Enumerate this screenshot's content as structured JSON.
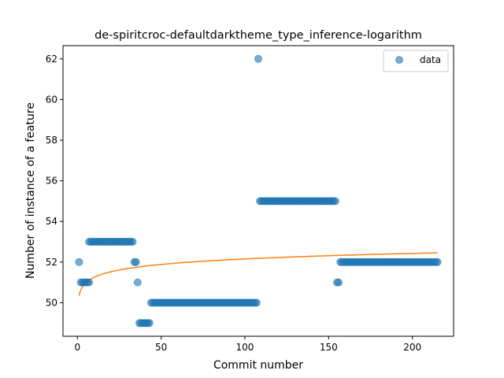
{
  "chart_data": {
    "type": "scatter",
    "title": "de-spiritcroc-defaultdarktheme_type_inference-logarithm",
    "xlabel": "Commit number",
    "ylabel": "Number of instance of a feature",
    "xlim": [
      -8.6,
      224.6
    ],
    "ylim": [
      48.35,
      62.65
    ],
    "xticks": [
      0,
      50,
      100,
      150,
      200
    ],
    "yticks": [
      50,
      52,
      54,
      56,
      58,
      60,
      62
    ],
    "legend": {
      "position": "top-right",
      "entries": [
        "data"
      ]
    },
    "grid": false,
    "series": [
      {
        "name": "data",
        "kind": "scatter",
        "color": "#1f77b4",
        "alpha": 0.6,
        "segments": [
          {
            "x_start": 1,
            "x_end": 1,
            "y": 52
          },
          {
            "x_start": 2,
            "x_end": 7,
            "y": 51
          },
          {
            "x_start": 7,
            "x_end": 33,
            "y": 53
          },
          {
            "x_start": 34,
            "x_end": 35,
            "y": 52
          },
          {
            "x_start": 36,
            "x_end": 36,
            "y": 51
          },
          {
            "x_start": 37,
            "x_end": 43,
            "y": 49
          },
          {
            "x_start": 44,
            "x_end": 107,
            "y": 50
          },
          {
            "x_start": 108,
            "x_end": 108,
            "y": 62
          },
          {
            "x_start": 109,
            "x_end": 154,
            "y": 55
          },
          {
            "x_start": 155,
            "x_end": 156,
            "y": 51
          },
          {
            "x_start": 157,
            "x_end": 215,
            "y": 52
          }
        ]
      },
      {
        "name": "",
        "kind": "line",
        "color": "#ff7f0e",
        "equation": "y = 50.35 + 0.392 * ln(x)",
        "x_range": [
          1,
          215
        ],
        "a": 50.35,
        "b": 0.392
      }
    ]
  }
}
